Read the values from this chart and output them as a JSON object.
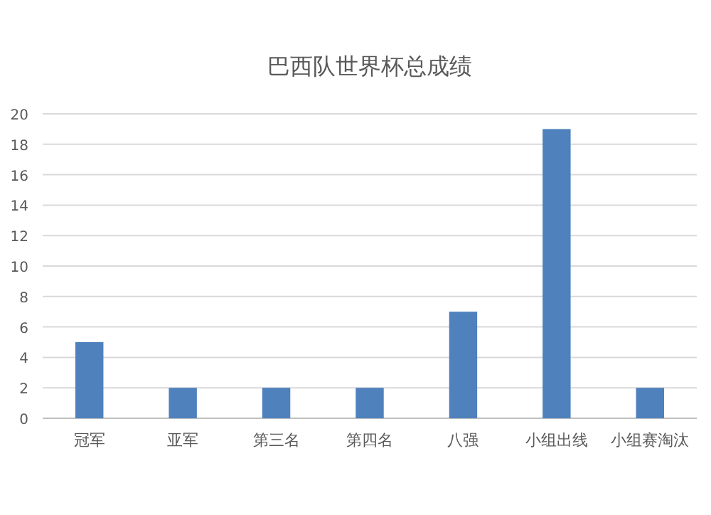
{
  "chart_data": {
    "type": "bar",
    "title": "巴西队世界杯总成绩",
    "categories": [
      "冠军",
      "亚军",
      "第三名",
      "第四名",
      "八强",
      "小组出线",
      "小组赛淘汰"
    ],
    "values": [
      5,
      2,
      2,
      2,
      7,
      19,
      2
    ],
    "color": "#4f81bd",
    "ylim": [
      0,
      20
    ],
    "yticks": [
      0,
      2,
      4,
      6,
      8,
      10,
      12,
      14,
      16,
      18,
      20
    ],
    "grid": "y"
  }
}
